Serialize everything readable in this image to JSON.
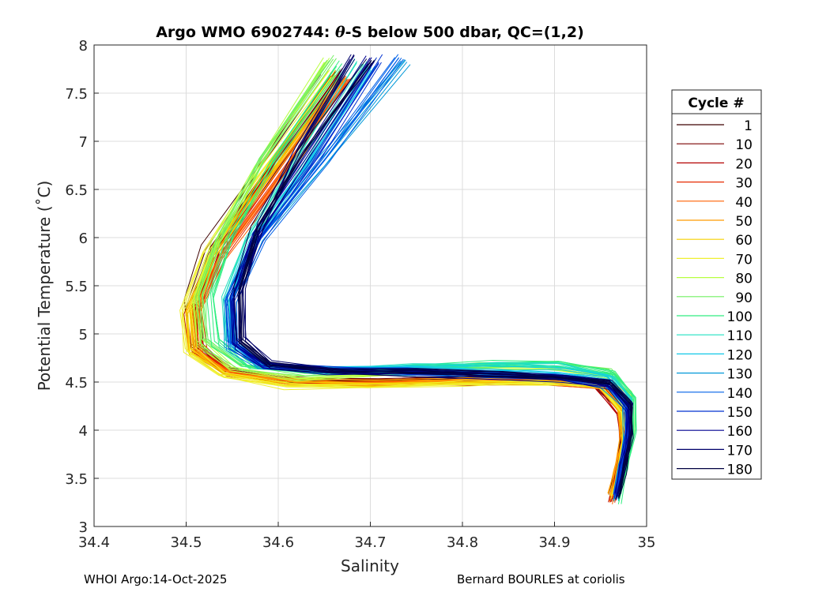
{
  "chart_data": {
    "type": "line",
    "title_prefix": "Argo WMO 6902744: ",
    "title_theta": "θ",
    "title_suffix": "-S below 500 dbar,  QC=(1,2)",
    "xlabel": "Salinity",
    "ylabel": "Potential Temperature (˚C)",
    "xlim": [
      34.4,
      35.0
    ],
    "ylim": [
      3.0,
      8.0
    ],
    "grid": true,
    "xticks": [
      34.4,
      34.5,
      34.6,
      34.7,
      34.8,
      34.9,
      35.0
    ],
    "xtick_labels": [
      "34.4",
      "34.5",
      "34.6",
      "34.7",
      "34.8",
      "34.9",
      "35"
    ],
    "yticks": [
      3.0,
      3.5,
      4.0,
      4.5,
      5.0,
      5.5,
      6.0,
      6.5,
      7.0,
      7.5,
      8.0
    ],
    "ytick_labels": [
      "3",
      "3.5",
      "4",
      "4.5",
      "5",
      "5.5",
      "6",
      "6.5",
      "7",
      "7.5",
      "8"
    ],
    "legend": {
      "title": "Cycle #",
      "placement": "outside-right",
      "entries": [
        "1",
        "10",
        "20",
        "30",
        "40",
        "50",
        "60",
        "70",
        "80",
        "90",
        "100",
        "110",
        "120",
        "130",
        "140",
        "150",
        "160",
        "170",
        "180"
      ],
      "colors": [
        "#3f0000",
        "#7a0000",
        "#b40000",
        "#e62a00",
        "#ff6000",
        "#ff9a00",
        "#f5d000",
        "#f0f030",
        "#b8ff40",
        "#70f060",
        "#30ee80",
        "#20e0c0",
        "#10c8e8",
        "#0098d8",
        "#0060e8",
        "#0030d0",
        "#000090",
        "#00006a",
        "#000040"
      ]
    },
    "series": [
      {
        "name": "1",
        "color": "#3f0000",
        "ds": -0.004,
        "dt": 0.12,
        "x": [
          34.655,
          34.58,
          34.525,
          34.505,
          34.51,
          34.54,
          34.61,
          34.7,
          34.8,
          34.88,
          34.945,
          34.97,
          34.975,
          34.968,
          34.962
        ],
        "y": [
          7.65,
          6.6,
          5.85,
          5.3,
          4.85,
          4.62,
          4.5,
          4.48,
          4.5,
          4.5,
          4.45,
          4.2,
          3.9,
          3.55,
          3.28
        ]
      },
      {
        "name": "10",
        "color": "#7a0000",
        "ds": 0.003,
        "dt": 0.08,
        "x": [
          34.665,
          34.585,
          34.53,
          34.508,
          34.512,
          34.545,
          34.615,
          34.705,
          34.805,
          34.885,
          34.948,
          34.972,
          34.976,
          34.969,
          34.963
        ],
        "y": [
          7.7,
          6.6,
          5.85,
          5.3,
          4.85,
          4.62,
          4.51,
          4.49,
          4.51,
          4.51,
          4.46,
          4.2,
          3.9,
          3.55,
          3.28
        ]
      },
      {
        "name": "20",
        "color": "#b40000",
        "ds": -0.002,
        "dt": 0.04,
        "x": [
          34.66,
          34.58,
          34.527,
          34.504,
          34.509,
          34.542,
          34.61,
          34.7,
          34.8,
          34.88,
          34.945,
          34.97,
          34.974,
          34.966,
          34.96
        ],
        "y": [
          7.7,
          6.55,
          5.8,
          5.25,
          4.82,
          4.6,
          4.5,
          4.48,
          4.5,
          4.5,
          4.45,
          4.2,
          3.9,
          3.55,
          3.28
        ]
      },
      {
        "name": "30",
        "color": "#e62a00",
        "ds": 0.005,
        "dt": 0.0,
        "x": [
          34.67,
          34.59,
          34.532,
          34.51,
          34.514,
          34.548,
          34.62,
          34.71,
          34.81,
          34.89,
          34.95,
          34.973,
          34.977,
          34.97,
          34.964
        ],
        "y": [
          7.65,
          6.55,
          5.8,
          5.25,
          4.82,
          4.6,
          4.5,
          4.49,
          4.51,
          4.51,
          4.46,
          4.2,
          3.9,
          3.55,
          3.3
        ]
      },
      {
        "name": "40",
        "color": "#ff6000",
        "ds": 0.0,
        "dt": -0.05,
        "x": [
          34.675,
          34.59,
          34.535,
          34.51,
          34.513,
          34.55,
          34.62,
          34.71,
          34.81,
          34.89,
          34.95,
          34.972,
          34.975,
          34.968,
          34.962
        ],
        "y": [
          7.65,
          6.5,
          5.8,
          5.25,
          4.82,
          4.6,
          4.51,
          4.5,
          4.52,
          4.52,
          4.47,
          4.2,
          3.9,
          3.55,
          3.3
        ]
      },
      {
        "name": "50",
        "color": "#ff9a00",
        "ds": -0.006,
        "dt": 0.1,
        "x": [
          34.67,
          34.585,
          34.53,
          34.505,
          34.508,
          34.545,
          34.615,
          34.705,
          34.805,
          34.885,
          34.948,
          34.971,
          34.974,
          34.967,
          34.961
        ],
        "y": [
          7.6,
          6.5,
          5.8,
          5.22,
          4.8,
          4.58,
          4.49,
          4.48,
          4.5,
          4.51,
          4.46,
          4.2,
          3.9,
          3.55,
          3.3
        ]
      },
      {
        "name": "60",
        "color": "#f5d000",
        "ds": 0.004,
        "dt": 0.03,
        "x": [
          34.665,
          34.58,
          34.528,
          34.503,
          34.507,
          34.543,
          34.61,
          34.7,
          34.8,
          34.885,
          34.948,
          34.972,
          34.976,
          34.969,
          34.963
        ],
        "y": [
          7.7,
          6.55,
          5.8,
          5.22,
          4.8,
          4.58,
          4.48,
          4.47,
          4.49,
          4.5,
          4.46,
          4.2,
          3.9,
          3.55,
          3.3
        ]
      },
      {
        "name": "70",
        "color": "#f0f030",
        "ds": -0.003,
        "dt": -0.03,
        "x": [
          34.66,
          34.575,
          34.525,
          34.5,
          34.505,
          34.54,
          34.61,
          34.7,
          34.8,
          34.885,
          34.95,
          34.975,
          34.978,
          34.971,
          34.965
        ],
        "y": [
          7.7,
          6.6,
          5.85,
          5.25,
          4.82,
          4.58,
          4.46,
          4.45,
          4.48,
          4.5,
          4.47,
          4.2,
          3.9,
          3.55,
          3.3
        ]
      },
      {
        "name": "80",
        "color": "#b8ff40",
        "ds": 0.002,
        "dt": 0.07,
        "x": [
          34.65,
          34.575,
          34.53,
          34.508,
          34.512,
          34.548,
          34.62,
          34.71,
          34.81,
          34.89,
          34.955,
          34.98,
          34.982,
          34.975,
          34.968
        ],
        "y": [
          7.8,
          6.7,
          5.9,
          5.3,
          4.88,
          4.62,
          4.52,
          4.55,
          4.62,
          4.62,
          4.55,
          4.3,
          4.0,
          3.6,
          3.3
        ]
      },
      {
        "name": "90",
        "color": "#70f060",
        "ds": -0.005,
        "dt": 0.02,
        "x": [
          34.66,
          34.585,
          34.54,
          34.518,
          34.522,
          34.56,
          34.63,
          34.72,
          34.82,
          34.9,
          34.96,
          34.985,
          34.986,
          34.978,
          34.97
        ],
        "y": [
          7.85,
          6.8,
          6.0,
          5.4,
          4.92,
          4.66,
          4.58,
          4.62,
          4.68,
          4.68,
          4.6,
          4.35,
          4.0,
          3.6,
          3.3
        ]
      },
      {
        "name": "100",
        "color": "#30ee80",
        "ds": 0.004,
        "dt": -0.04,
        "x": [
          34.665,
          34.59,
          34.545,
          34.525,
          34.53,
          34.565,
          34.64,
          34.73,
          34.83,
          34.905,
          34.962,
          34.986,
          34.985,
          34.977,
          34.969
        ],
        "y": [
          7.8,
          6.8,
          6.0,
          5.4,
          4.92,
          4.68,
          4.62,
          4.66,
          4.7,
          4.7,
          4.6,
          4.35,
          4.0,
          3.6,
          3.28
        ]
      },
      {
        "name": "110",
        "color": "#20e0c0",
        "ds": -0.002,
        "dt": 0.06,
        "x": [
          34.69,
          34.62,
          34.57,
          34.545,
          34.55,
          34.585,
          34.66,
          34.75,
          34.84,
          34.91,
          34.962,
          34.982,
          34.982,
          34.975,
          34.968
        ],
        "y": [
          7.8,
          6.7,
          5.95,
          5.35,
          4.9,
          4.68,
          4.63,
          4.65,
          4.68,
          4.66,
          4.56,
          4.32,
          4.0,
          3.6,
          3.3
        ]
      },
      {
        "name": "120",
        "color": "#10c8e8",
        "ds": 0.003,
        "dt": 0.0,
        "x": [
          34.7,
          34.625,
          34.57,
          34.545,
          34.548,
          34.58,
          34.65,
          34.74,
          34.83,
          34.905,
          34.958,
          34.98,
          34.98,
          34.973,
          34.967
        ],
        "y": [
          7.75,
          6.7,
          5.95,
          5.35,
          4.88,
          4.68,
          4.63,
          4.63,
          4.63,
          4.6,
          4.52,
          4.28,
          3.98,
          3.6,
          3.3
        ]
      },
      {
        "name": "130",
        "color": "#0098d8",
        "ds": -0.004,
        "dt": -0.06,
        "x": [
          34.74,
          34.65,
          34.58,
          34.55,
          34.55,
          34.58,
          34.65,
          34.74,
          34.83,
          34.9,
          34.955,
          34.978,
          34.979,
          34.972,
          34.966
        ],
        "y": [
          7.85,
          6.8,
          6.0,
          5.35,
          4.88,
          4.68,
          4.63,
          4.62,
          4.6,
          4.57,
          4.5,
          4.28,
          3.98,
          3.6,
          3.3
        ]
      },
      {
        "name": "140",
        "color": "#0060e8",
        "ds": 0.005,
        "dt": 0.05,
        "x": [
          34.73,
          34.65,
          34.58,
          34.548,
          34.55,
          34.58,
          34.65,
          34.74,
          34.83,
          34.9,
          34.955,
          34.977,
          34.978,
          34.971,
          34.965
        ],
        "y": [
          7.85,
          6.8,
          5.98,
          5.35,
          4.88,
          4.68,
          4.63,
          4.61,
          4.58,
          4.55,
          4.48,
          4.26,
          3.96,
          3.6,
          3.32
        ]
      },
      {
        "name": "150",
        "color": "#0030d0",
        "ds": -0.001,
        "dt": 0.02,
        "x": [
          34.71,
          34.64,
          34.58,
          34.55,
          34.553,
          34.585,
          34.655,
          34.745,
          34.835,
          34.905,
          34.958,
          34.98,
          34.98,
          34.973,
          34.967
        ],
        "y": [
          7.85,
          6.8,
          6.0,
          5.38,
          4.9,
          4.68,
          4.63,
          4.61,
          4.58,
          4.55,
          4.48,
          4.26,
          3.96,
          3.6,
          3.32
        ]
      },
      {
        "name": "160",
        "color": "#000090",
        "ds": 0.002,
        "dt": -0.02,
        "x": [
          34.7,
          34.63,
          34.575,
          34.55,
          34.553,
          34.585,
          34.655,
          34.745,
          34.835,
          34.905,
          34.958,
          34.98,
          34.98,
          34.973,
          34.967
        ],
        "y": [
          7.85,
          6.85,
          6.05,
          5.4,
          4.9,
          4.68,
          4.62,
          4.6,
          4.57,
          4.54,
          4.47,
          4.25,
          3.96,
          3.6,
          3.32
        ]
      },
      {
        "name": "170",
        "color": "#00006a",
        "ds": -0.003,
        "dt": 0.03,
        "x": [
          34.68,
          34.62,
          34.58,
          34.56,
          34.56,
          34.59,
          34.66,
          34.75,
          34.84,
          34.91,
          34.96,
          34.982,
          34.982,
          34.975,
          34.969
        ],
        "y": [
          7.85,
          6.9,
          6.1,
          5.45,
          4.92,
          4.68,
          4.62,
          4.6,
          4.57,
          4.55,
          4.48,
          4.25,
          3.96,
          3.6,
          3.32
        ]
      },
      {
        "name": "180",
        "color": "#000040",
        "ds": 0.004,
        "dt": 0.0,
        "x": [
          34.7,
          34.625,
          34.575,
          34.555,
          34.558,
          34.59,
          34.66,
          34.75,
          34.84,
          34.91,
          34.96,
          34.983,
          34.983,
          34.976,
          34.97
        ],
        "y": [
          7.85,
          6.9,
          6.1,
          5.45,
          4.92,
          4.68,
          4.62,
          4.6,
          4.57,
          4.55,
          4.48,
          4.25,
          3.96,
          3.6,
          3.32
        ]
      }
    ]
  },
  "footer": {
    "left": "WHOI Argo:14-Oct-2025",
    "right": "Bernard BOURLES at coriolis"
  }
}
